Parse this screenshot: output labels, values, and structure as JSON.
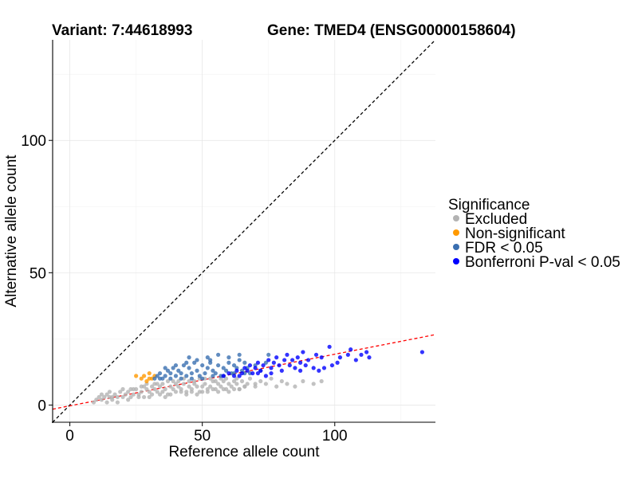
{
  "chart_data": {
    "type": "scatter",
    "title_left": "Variant: 7:44618993",
    "title_right": "Gene: TMED4 (ENSG00000158604)",
    "xlabel": "Reference allele count",
    "ylabel": "Alternative allele count",
    "xlim": [
      -6.5,
      138
    ],
    "ylim": [
      -6.5,
      138
    ],
    "x_ticks": [
      0,
      50,
      100
    ],
    "y_ticks": [
      0,
      50,
      100
    ],
    "grid": true,
    "reference_lines": [
      {
        "name": "identity",
        "style": "dashed",
        "color": "#000000",
        "slope": 1,
        "intercept": 0
      },
      {
        "name": "fit",
        "style": "dashed",
        "color": "#ff0000",
        "slope": 0.195,
        "intercept": -0.3
      }
    ],
    "legend": {
      "title": "Significance",
      "position": "right",
      "entries": [
        {
          "label": "Excluded",
          "color": "#b3b3b3"
        },
        {
          "label": "Non-significant",
          "color": "#ff9900"
        },
        {
          "label": "FDR < 0.05",
          "color": "#3a6fb0"
        },
        {
          "label": "Bonferroni P-val < 0.05",
          "color": "#0000ff"
        }
      ]
    },
    "series": [
      {
        "name": "Excluded",
        "color": "#b3b3b3",
        "points": [
          [
            10,
            2
          ],
          [
            11,
            3
          ],
          [
            12,
            2
          ],
          [
            13,
            3
          ],
          [
            14,
            4
          ],
          [
            15,
            3
          ],
          [
            16,
            2
          ],
          [
            17,
            4
          ],
          [
            18,
            3
          ],
          [
            19,
            5
          ],
          [
            20,
            3
          ],
          [
            21,
            4
          ],
          [
            22,
            5
          ],
          [
            23,
            3
          ],
          [
            24,
            4
          ],
          [
            25,
            6
          ],
          [
            26,
            4
          ],
          [
            27,
            5
          ],
          [
            28,
            3
          ],
          [
            29,
            6
          ],
          [
            30,
            5
          ],
          [
            31,
            4
          ],
          [
            32,
            6
          ],
          [
            33,
            5
          ],
          [
            34,
            7
          ],
          [
            35,
            5
          ],
          [
            36,
            6
          ],
          [
            37,
            4
          ],
          [
            38,
            7
          ],
          [
            39,
            6
          ],
          [
            40,
            5
          ],
          [
            41,
            7
          ],
          [
            42,
            6
          ],
          [
            43,
            8
          ],
          [
            44,
            5
          ],
          [
            45,
            7
          ],
          [
            46,
            6
          ],
          [
            47,
            8
          ],
          [
            48,
            7
          ],
          [
            49,
            5
          ],
          [
            50,
            7
          ],
          [
            51,
            8
          ],
          [
            52,
            6
          ],
          [
            53,
            7
          ],
          [
            54,
            9
          ],
          [
            55,
            6
          ],
          [
            56,
            8
          ],
          [
            57,
            7
          ],
          [
            58,
            9
          ],
          [
            59,
            6
          ],
          [
            60,
            8
          ],
          [
            61,
            7
          ],
          [
            62,
            9
          ],
          [
            63,
            8
          ],
          [
            64,
            6
          ],
          [
            65,
            9
          ],
          [
            66,
            7
          ],
          [
            67,
            8
          ],
          [
            68,
            10
          ],
          [
            70,
            8
          ],
          [
            72,
            9
          ],
          [
            74,
            8
          ],
          [
            76,
            10
          ],
          [
            78,
            7
          ],
          [
            80,
            9
          ],
          [
            82,
            8
          ],
          [
            85,
            7
          ],
          [
            88,
            9
          ],
          [
            92,
            8
          ],
          [
            95,
            9
          ],
          [
            18,
            1
          ],
          [
            22,
            2
          ],
          [
            26,
            3
          ],
          [
            30,
            3
          ],
          [
            34,
            4
          ],
          [
            38,
            4
          ],
          [
            42,
            5
          ],
          [
            46,
            5
          ],
          [
            50,
            5
          ],
          [
            54,
            6
          ],
          [
            58,
            6
          ],
          [
            62,
            6
          ],
          [
            66,
            7
          ],
          [
            70,
            7
          ],
          [
            27,
            7
          ],
          [
            33,
            8
          ],
          [
            41,
            9
          ],
          [
            47,
            9
          ],
          [
            53,
            10
          ],
          [
            36,
            3
          ],
          [
            44,
            4
          ],
          [
            48,
            4
          ],
          [
            52,
            5
          ],
          [
            56,
            5
          ],
          [
            60,
            5
          ],
          [
            64,
            6
          ],
          [
            40,
            8
          ],
          [
            31,
            7
          ],
          [
            45,
            9
          ],
          [
            57,
            10
          ],
          [
            24,
            6
          ],
          [
            28,
            7
          ],
          [
            35,
            8
          ],
          [
            39,
            9
          ],
          [
            43,
            10
          ],
          [
            49,
            10
          ],
          [
            51,
            10
          ],
          [
            55,
            9
          ],
          [
            59,
            10
          ],
          [
            63,
            10
          ],
          [
            12,
            4
          ],
          [
            15,
            5
          ],
          [
            20,
            6
          ],
          [
            23,
            6
          ],
          [
            29,
            8
          ],
          [
            32,
            8
          ],
          [
            37,
            9
          ],
          [
            9,
            1
          ],
          [
            14,
            1
          ],
          [
            16,
            3
          ]
        ]
      },
      {
        "name": "Non-significant",
        "color": "#ff9900",
        "points": [
          [
            25,
            11
          ],
          [
            28,
            11
          ],
          [
            30,
            12
          ],
          [
            31,
            10
          ],
          [
            29,
            9
          ],
          [
            32,
            11
          ],
          [
            27,
            10
          ],
          [
            30,
            10
          ]
        ]
      },
      {
        "name": "FDR < 0.05",
        "color": "#3a6fb0",
        "points": [
          [
            32,
            10
          ],
          [
            33,
            11
          ],
          [
            34,
            12
          ],
          [
            35,
            10
          ],
          [
            36,
            11
          ],
          [
            37,
            13
          ],
          [
            38,
            12
          ],
          [
            39,
            14
          ],
          [
            40,
            11
          ],
          [
            41,
            13
          ],
          [
            42,
            12
          ],
          [
            43,
            15
          ],
          [
            44,
            11
          ],
          [
            45,
            14
          ],
          [
            46,
            12
          ],
          [
            47,
            16
          ],
          [
            48,
            13
          ],
          [
            49,
            11
          ],
          [
            50,
            15
          ],
          [
            51,
            12
          ],
          [
            52,
            14
          ],
          [
            53,
            17
          ],
          [
            54,
            13
          ],
          [
            55,
            12
          ],
          [
            56,
            15
          ],
          [
            57,
            11
          ],
          [
            58,
            14
          ],
          [
            59,
            13
          ],
          [
            60,
            16
          ],
          [
            61,
            12
          ],
          [
            62,
            15
          ],
          [
            63,
            14
          ],
          [
            64,
            17
          ],
          [
            65,
            13
          ],
          [
            66,
            16
          ],
          [
            67,
            14
          ],
          [
            68,
            12
          ],
          [
            70,
            15
          ],
          [
            72,
            13
          ],
          [
            74,
            16
          ],
          [
            36,
            14
          ],
          [
            40,
            15
          ],
          [
            44,
            16
          ],
          [
            48,
            17
          ],
          [
            52,
            18
          ],
          [
            56,
            19
          ],
          [
            60,
            18
          ],
          [
            64,
            19
          ],
          [
            75,
            19
          ],
          [
            42,
            10
          ],
          [
            46,
            10
          ],
          [
            50,
            10
          ],
          [
            54,
            11
          ],
          [
            58,
            11
          ],
          [
            38,
            10
          ],
          [
            62,
            12
          ],
          [
            66,
            12
          ],
          [
            34,
            10
          ],
          [
            45,
            18
          ],
          [
            53,
            16
          ]
        ]
      },
      {
        "name": "Bonferroni P-val < 0.05",
        "color": "#0000ff",
        "points": [
          [
            58,
            11
          ],
          [
            60,
            12
          ],
          [
            62,
            11
          ],
          [
            63,
            13
          ],
          [
            65,
            12
          ],
          [
            66,
            14
          ],
          [
            67,
            13
          ],
          [
            68,
            15
          ],
          [
            69,
            12
          ],
          [
            70,
            14
          ],
          [
            71,
            16
          ],
          [
            72,
            13
          ],
          [
            73,
            15
          ],
          [
            74,
            11
          ],
          [
            75,
            17
          ],
          [
            76,
            14
          ],
          [
            77,
            16
          ],
          [
            78,
            18
          ],
          [
            79,
            15
          ],
          [
            80,
            13
          ],
          [
            81,
            17
          ],
          [
            82,
            19
          ],
          [
            83,
            15
          ],
          [
            84,
            17
          ],
          [
            85,
            14
          ],
          [
            86,
            18
          ],
          [
            87,
            16
          ],
          [
            88,
            20
          ],
          [
            89,
            15
          ],
          [
            90,
            17
          ],
          [
            92,
            14
          ],
          [
            93,
            19
          ],
          [
            95,
            18
          ],
          [
            96,
            14
          ],
          [
            98,
            22
          ],
          [
            102,
            18
          ],
          [
            106,
            21
          ],
          [
            108,
            17
          ],
          [
            110,
            19
          ],
          [
            113,
            18
          ],
          [
            133,
            20
          ],
          [
            64,
            11
          ],
          [
            71,
            12
          ],
          [
            76,
            12
          ],
          [
            87,
            13
          ],
          [
            94,
            13
          ],
          [
            99,
            15
          ],
          [
            101,
            16
          ],
          [
            105,
            19
          ],
          [
            112,
            20
          ]
        ]
      }
    ]
  }
}
